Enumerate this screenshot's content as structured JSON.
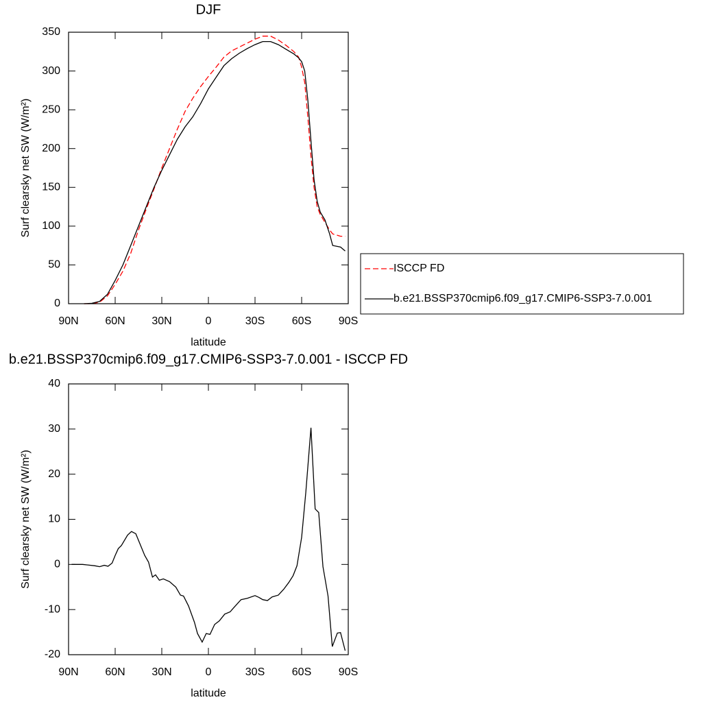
{
  "chart_data": [
    {
      "type": "line",
      "title": "DJF",
      "xlabel": "latitude",
      "ylabel": "Surf clearsky net SW (W/m²)",
      "x": [
        80,
        75,
        70,
        65,
        60,
        55,
        50,
        45,
        40,
        35,
        30,
        25,
        20,
        15,
        10,
        5,
        0,
        -5,
        -10,
        -15,
        -20,
        -25,
        -30,
        -35,
        -40,
        -45,
        -50,
        -55,
        -58,
        -60,
        -62,
        -64,
        -66,
        -68,
        -70,
        -72,
        -75,
        -78,
        -80,
        -85,
        -88
      ],
      "series": [
        {
          "name": "ISCCP FD",
          "color": "#ff0000",
          "dash": true,
          "values": [
            0,
            0,
            2,
            10,
            25,
            42,
            65,
            95,
            122,
            148,
            175,
            200,
            225,
            248,
            265,
            280,
            293,
            305,
            318,
            326,
            331,
            336,
            341,
            345,
            345,
            340,
            333,
            325,
            318,
            305,
            285,
            240,
            190,
            150,
            125,
            115,
            105,
            95,
            90,
            87,
            87
          ]
        },
        {
          "name": "b.e21.BSSP370cmip6.f09_g17.CMIP6-SSP3-7.0.001",
          "color": "#000000",
          "dash": false,
          "values": [
            0,
            0.5,
            3,
            12,
            30,
            50,
            75,
            100,
            125,
            150,
            172,
            192,
            212,
            228,
            241,
            258,
            277,
            292,
            307,
            316,
            323,
            329,
            334,
            338,
            338,
            334,
            328,
            322,
            317,
            312,
            300,
            262,
            210,
            160,
            132,
            118,
            108,
            90,
            75,
            73,
            68
          ]
        }
      ],
      "xlim": [
        90,
        -90
      ],
      "xticks": [
        {
          "value": 90,
          "label": "90N"
        },
        {
          "value": 60,
          "label": "60N"
        },
        {
          "value": 30,
          "label": "30N"
        },
        0,
        {
          "value": -30,
          "label": "30S"
        },
        {
          "value": -60,
          "label": "60S"
        },
        {
          "value": -90,
          "label": "90S"
        }
      ],
      "ylim": [
        0,
        350
      ],
      "yticks": [
        0,
        50,
        100,
        150,
        200,
        250,
        300,
        350
      ],
      "legend": "right"
    },
    {
      "type": "line",
      "title": "b.e21.BSSP370cmip6.f09_g17.CMIP6-SSP3-7.0.001 - ISCCP FD",
      "xlabel": "latitude",
      "ylabel": "Surf clearsky net SW (W/m²)",
      "x": [
        88,
        81,
        73,
        70,
        67,
        64.6,
        62,
        60,
        58,
        56,
        52,
        49.5,
        46.7,
        41,
        38.5,
        36,
        34,
        31.6,
        29,
        25,
        21,
        18,
        16,
        12.8,
        9,
        7,
        4,
        1.4,
        -1,
        -4,
        -7,
        -10.5,
        -14,
        -16.5,
        -21,
        -25,
        -30,
        -32.5,
        -35,
        -38,
        -41,
        -45,
        -48.5,
        -51.7,
        -54.5,
        -57,
        -60,
        -62.7,
        -66,
        -68.7,
        -71,
        -73.7,
        -77,
        -79.7,
        -83,
        -85,
        -88
      ],
      "series": [
        {
          "color": "#000000",
          "dash": false,
          "values": [
            0,
            0,
            -0.3,
            -0.5,
            -0.2,
            -0.4,
            0.3,
            2,
            3.5,
            4.2,
            6.5,
            7.3,
            6.8,
            2,
            0.5,
            -2.8,
            -2.3,
            -3.5,
            -3.2,
            -3.8,
            -5,
            -6.8,
            -7,
            -9.2,
            -12.8,
            -15.3,
            -17.2,
            -15.3,
            -15.5,
            -13.3,
            -12.5,
            -11,
            -10.5,
            -9.5,
            -7.8,
            -7.5,
            -6.9,
            -7.3,
            -7.8,
            -8,
            -7.2,
            -6.8,
            -5.5,
            -4,
            -2.5,
            -0.3,
            6,
            16,
            30.3,
            12.3,
            11.5,
            -0.5,
            -7,
            -18.2,
            -15.2,
            -15.1,
            -19.1
          ]
        }
      ],
      "xlim": [
        90,
        -90
      ],
      "xticks": [
        {
          "value": 90,
          "label": "90N"
        },
        {
          "value": 60,
          "label": "60N"
        },
        {
          "value": 30,
          "label": "30N"
        },
        0,
        {
          "value": -30,
          "label": "30S"
        },
        {
          "value": -60,
          "label": "60S"
        },
        {
          "value": -90,
          "label": "90S"
        }
      ],
      "ylim": [
        -20,
        40
      ],
      "yticks": [
        -20,
        -10,
        0,
        10,
        20,
        30,
        40
      ]
    }
  ]
}
